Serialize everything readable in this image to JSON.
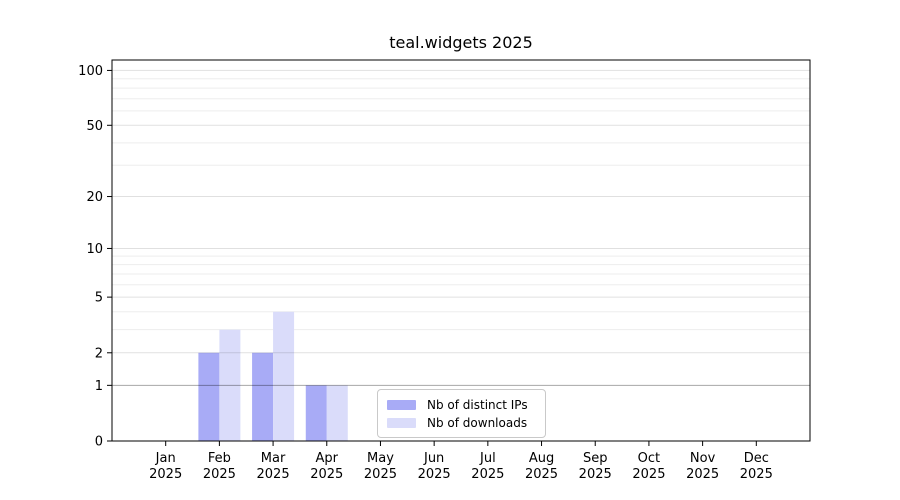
{
  "title": "teal.widgets 2025",
  "colors": {
    "distinct_ips": "#a8abf6",
    "downloads": "#dadcfa",
    "spine": "#000000",
    "grid_minor": "#ededed",
    "grid_major_overlay": "rgba(0,0,0,0.12)",
    "grid_baseline_overlay": "rgba(0,0,0,0.35)",
    "tick_text": "#000000",
    "legend_border": "#c9c9c9"
  },
  "legend": {
    "items": [
      {
        "label": "Nb of distinct IPs",
        "color_key": "distinct_ips"
      },
      {
        "label": "Nb of downloads",
        "color_key": "downloads"
      }
    ]
  },
  "chart_data": {
    "type": "bar",
    "title": "teal.widgets 2025",
    "subtitle": "",
    "xlabel": "",
    "ylabel": "",
    "y_scale": "log10(value+1)",
    "categories": [
      "Jan",
      "Feb",
      "Mar",
      "Apr",
      "May",
      "Jun",
      "Jul",
      "Aug",
      "Sep",
      "Oct",
      "Nov",
      "Dec"
    ],
    "category_year": "2025",
    "series": [
      {
        "name": "Nb of distinct IPs",
        "color_key": "distinct_ips",
        "values": [
          0,
          2,
          2,
          1,
          0,
          0,
          0,
          0,
          0,
          0,
          0,
          0
        ]
      },
      {
        "name": "Nb of downloads",
        "color_key": "downloads",
        "values": [
          0,
          3,
          4,
          1,
          0,
          0,
          0,
          0,
          0,
          0,
          0,
          0
        ]
      }
    ],
    "y_ticks": [
      0,
      1,
      2,
      5,
      10,
      20,
      50,
      100
    ],
    "y_minor_ticks": [
      3,
      4,
      6,
      7,
      8,
      9,
      30,
      40,
      60,
      70,
      80,
      90
    ],
    "ylim": [
      0,
      114
    ],
    "grid": true,
    "legend_position": "lower center"
  }
}
